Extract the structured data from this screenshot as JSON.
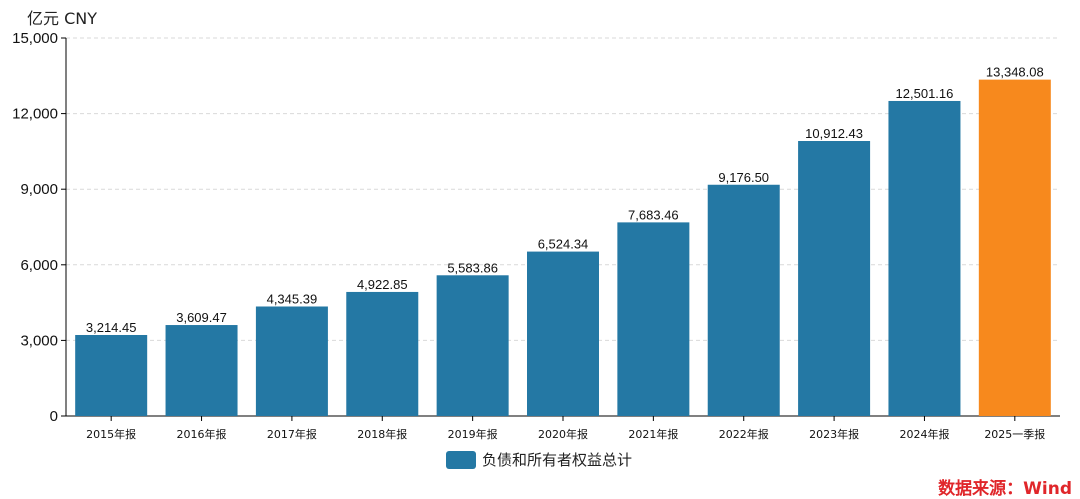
{
  "chart_data": {
    "type": "bar",
    "unit_label": "亿元  CNY",
    "categories": [
      "2015年报",
      "2016年报",
      "2017年报",
      "2018年报",
      "2019年报",
      "2020年报",
      "2021年报",
      "2022年报",
      "2023年报",
      "2024年报",
      "2025一季报"
    ],
    "series": [
      {
        "name": "负债和所有者权益总计",
        "values": [
          3214.45,
          3609.47,
          4345.39,
          4922.85,
          5583.86,
          6524.34,
          7683.46,
          9176.5,
          10912.43,
          12501.16,
          13348.08
        ],
        "data_labels": [
          "3,214.45",
          "3,609.47",
          "4,345.39",
          "4,922.85",
          "5,583.86",
          "6,524.34",
          "7,683.46",
          "9,176.50",
          "10,912.43",
          "12,501.16",
          "13,348.08"
        ]
      }
    ],
    "ylim": [
      0,
      15000
    ],
    "yticks": [
      0,
      3000,
      6000,
      9000,
      12000,
      15000
    ],
    "ytick_labels": [
      "0",
      "3,000",
      "6,000",
      "9,000",
      "12,000",
      "15,000"
    ],
    "grid": true,
    "legend_position": "bottom-center",
    "colors": {
      "bar": "#2478a4",
      "highlight_bar": "#f7891d",
      "highlight_index": 10
    }
  },
  "source": "数据来源：Wind",
  "source_color": "#e0262a"
}
